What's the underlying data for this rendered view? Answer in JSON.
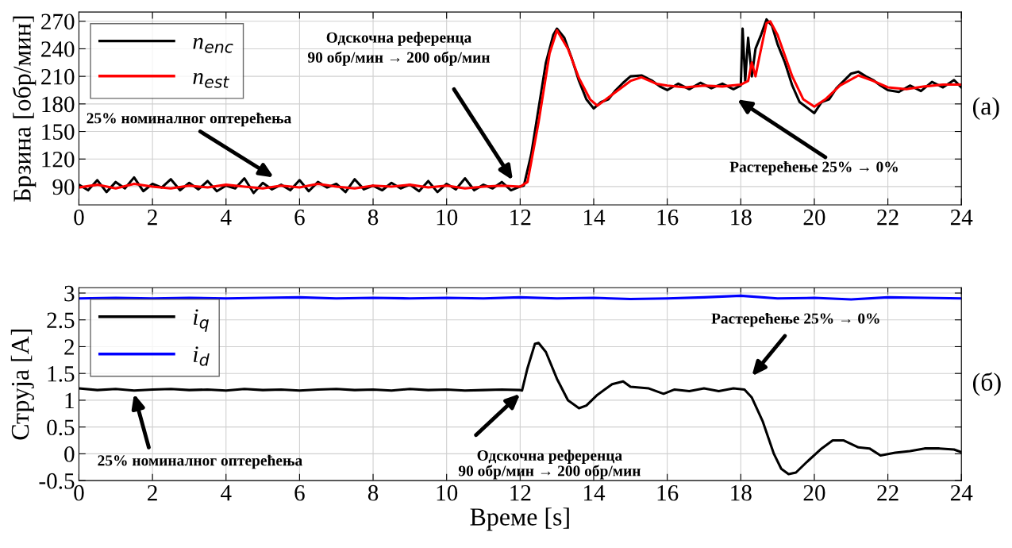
{
  "chart_data": [
    {
      "type": "line",
      "ylabel": "Брзина [обр/мин]",
      "xlim": [
        0,
        24
      ],
      "xticks": [
        0,
        2,
        4,
        6,
        8,
        10,
        12,
        14,
        16,
        18,
        20,
        22,
        24
      ],
      "ylim": [
        70,
        280
      ],
      "yticks": [
        90,
        120,
        150,
        180,
        210,
        240,
        270
      ],
      "grid": true,
      "legend": "top left",
      "series": [
        {
          "name": "n$_{enc}$",
          "color": "#000000",
          "x": [
            0,
            0.25,
            0.5,
            0.75,
            1,
            1.25,
            1.5,
            1.75,
            2,
            2.25,
            2.5,
            2.75,
            3,
            3.25,
            3.5,
            3.75,
            4,
            4.25,
            4.5,
            4.75,
            5,
            5.25,
            5.5,
            5.75,
            6,
            6.25,
            6.5,
            6.75,
            7,
            7.25,
            7.5,
            7.75,
            8,
            8.25,
            8.5,
            8.75,
            9,
            9.25,
            9.5,
            9.75,
            10,
            10.25,
            10.5,
            10.75,
            11,
            11.25,
            11.5,
            11.75,
            12,
            12.1,
            12.3,
            12.5,
            12.7,
            12.9,
            13.0,
            13.2,
            13.4,
            13.6,
            13.8,
            14.0,
            14.2,
            14.4,
            14.6,
            14.8,
            15.0,
            15.3,
            15.6,
            15.8,
            16.0,
            16.3,
            16.6,
            16.9,
            17.2,
            17.5,
            17.8,
            18.0,
            18.05,
            18.12,
            18.2,
            18.3,
            18.4,
            18.55,
            18.7,
            18.85,
            19.0,
            19.2,
            19.4,
            19.6,
            19.8,
            20.0,
            20.2,
            20.4,
            20.6,
            20.8,
            21.0,
            21.2,
            21.4,
            21.6,
            21.8,
            22.0,
            22.3,
            22.6,
            22.9,
            23.2,
            23.5,
            23.8,
            24.0
          ],
          "values": [
            92,
            86,
            97,
            84,
            95,
            88,
            100,
            85,
            93,
            89,
            98,
            86,
            94,
            87,
            96,
            85,
            91,
            88,
            99,
            83,
            94,
            87,
            92,
            86,
            97,
            85,
            95,
            89,
            93,
            84,
            98,
            87,
            91,
            86,
            94,
            88,
            92,
            85,
            96,
            84,
            93,
            87,
            99,
            86,
            92,
            88,
            95,
            86,
            90,
            91,
            125,
            175,
            225,
            255,
            262,
            252,
            230,
            205,
            185,
            175,
            182,
            185,
            195,
            203,
            210,
            211,
            205,
            199,
            195,
            202,
            196,
            203,
            197,
            202,
            196,
            200,
            262,
            205,
            252,
            210,
            240,
            255,
            272,
            265,
            245,
            225,
            200,
            182,
            176,
            170,
            182,
            185,
            197,
            205,
            213,
            215,
            210,
            206,
            200,
            195,
            193,
            200,
            194,
            204,
            198,
            206,
            198
          ]
        },
        {
          "name": "n$_{est}$",
          "color": "#ff0000",
          "x": [
            0,
            0.5,
            1,
            1.5,
            2,
            2.5,
            3,
            3.5,
            4,
            4.5,
            5,
            5.5,
            6,
            6.5,
            7,
            7.5,
            8,
            8.5,
            9,
            9.5,
            10,
            10.5,
            11,
            11.5,
            12,
            12.2,
            12.5,
            12.8,
            13.0,
            13.3,
            13.6,
            13.9,
            14.1,
            14.5,
            15.0,
            15.3,
            15.7,
            16.0,
            16.5,
            17.0,
            17.5,
            18.0,
            18.2,
            18.3,
            18.4,
            18.5,
            18.7,
            18.8,
            19.0,
            19.4,
            19.7,
            20.0,
            20.3,
            20.7,
            21.2,
            21.6,
            22.0,
            22.5,
            23.0,
            23.5,
            24.0
          ],
          "values": [
            89,
            92,
            88,
            93,
            90,
            88,
            91,
            89,
            92,
            90,
            88,
            91,
            89,
            93,
            90,
            88,
            91,
            90,
            92,
            89,
            91,
            88,
            90,
            91,
            90,
            95,
            160,
            235,
            260,
            240,
            208,
            185,
            178,
            190,
            205,
            209,
            202,
            200,
            198,
            200,
            199,
            201,
            205,
            225,
            210,
            230,
            268,
            270,
            255,
            210,
            185,
            177,
            185,
            200,
            211,
            205,
            198,
            196,
            199,
            201,
            201
          ]
        }
      ],
      "annotations": [
        "25% номиналног оптерећења",
        "Одскочна референца\n90 обр/мин → 200 обр/мин",
        "Растерећење 25% → 0%",
        "(a)"
      ]
    },
    {
      "type": "line",
      "xlabel": "Време [s]",
      "ylabel": "Струја [A]",
      "xlim": [
        0,
        24
      ],
      "xticks": [
        0,
        2,
        4,
        6,
        8,
        10,
        12,
        14,
        16,
        18,
        20,
        22,
        24
      ],
      "ylim": [
        -0.5,
        3.1
      ],
      "yticks": [
        -0.5,
        0,
        0.5,
        1,
        1.5,
        2,
        2.5,
        3
      ],
      "grid": true,
      "legend": "top left",
      "series": [
        {
          "name": "i$_{q}$",
          "color": "#000000",
          "x": [
            0,
            0.5,
            1,
            1.5,
            2,
            2.5,
            3,
            3.5,
            4,
            4.5,
            5,
            5.5,
            6,
            6.5,
            7,
            7.5,
            8,
            8.5,
            9,
            9.5,
            10,
            10.5,
            11,
            11.5,
            12,
            12.05,
            12.2,
            12.4,
            12.5,
            12.7,
            13.0,
            13.3,
            13.6,
            13.8,
            14.1,
            14.5,
            14.8,
            15.0,
            15.5,
            15.9,
            16.2,
            16.6,
            17.0,
            17.4,
            17.8,
            18.1,
            18.3,
            18.6,
            18.9,
            19.1,
            19.3,
            19.5,
            19.8,
            20.2,
            20.5,
            20.8,
            21.2,
            21.5,
            21.8,
            22.2,
            22.6,
            23.0,
            23.4,
            23.8,
            24.0
          ],
          "values": [
            1.22,
            1.19,
            1.21,
            1.18,
            1.2,
            1.21,
            1.19,
            1.2,
            1.18,
            1.21,
            1.19,
            1.2,
            1.18,
            1.2,
            1.21,
            1.19,
            1.2,
            1.18,
            1.21,
            1.19,
            1.2,
            1.18,
            1.19,
            1.2,
            1.19,
            1.18,
            1.6,
            2.05,
            2.07,
            1.9,
            1.4,
            1.0,
            0.85,
            0.9,
            1.1,
            1.3,
            1.35,
            1.25,
            1.22,
            1.12,
            1.2,
            1.17,
            1.22,
            1.17,
            1.22,
            1.2,
            1.05,
            0.6,
            0.0,
            -0.28,
            -0.38,
            -0.35,
            -0.15,
            0.1,
            0.25,
            0.25,
            0.12,
            0.1,
            -0.03,
            0.02,
            0.05,
            0.1,
            0.1,
            0.08,
            0.03
          ]
        },
        {
          "name": "i$_{d}$",
          "color": "#0000ff",
          "x": [
            0,
            1,
            2,
            3,
            4,
            5,
            6,
            7,
            8,
            9,
            10,
            11,
            12,
            13,
            14,
            15,
            16,
            17,
            18,
            19,
            20,
            21,
            22,
            23,
            24
          ],
          "values": [
            2.9,
            2.91,
            2.9,
            2.91,
            2.9,
            2.91,
            2.92,
            2.9,
            2.91,
            2.9,
            2.91,
            2.9,
            2.92,
            2.9,
            2.91,
            2.89,
            2.9,
            2.92,
            2.95,
            2.9,
            2.91,
            2.88,
            2.92,
            2.91,
            2.9
          ]
        }
      ],
      "annotations": [
        "25% номиналног оптерећења",
        "Одскочна референца\n90 обр/мин → 200 обр/мин",
        "Растерећење 25% → 0%",
        "(б)"
      ]
    }
  ]
}
